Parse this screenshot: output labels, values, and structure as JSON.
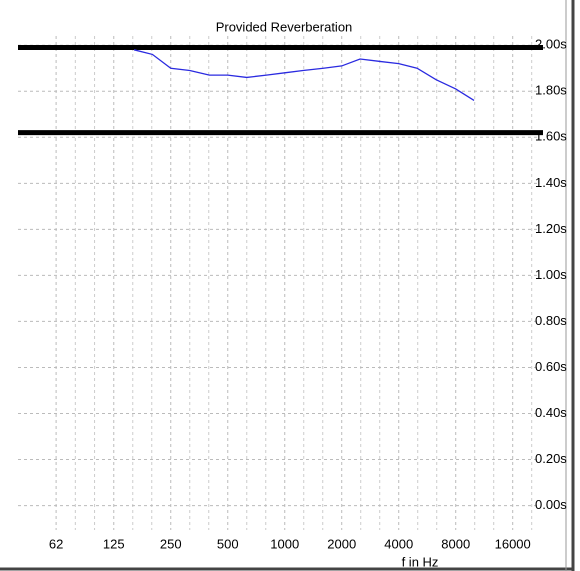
{
  "chart_data": {
    "type": "line",
    "title": "Provided Reverberation",
    "x_label": "f in Hz",
    "x": [
      160,
      200,
      250,
      315,
      400,
      500,
      630,
      800,
      1000,
      1250,
      1600,
      2000,
      2500,
      3150,
      4000,
      5000,
      6300,
      8000,
      10000
    ],
    "series": [
      {
        "color": "#2a2ae0",
        "values": [
          1.98,
          1.96,
          1.9,
          1.89,
          1.87,
          1.87,
          1.86,
          1.87,
          1.88,
          1.89,
          1.9,
          1.91,
          1.94,
          1.93,
          1.92,
          1.9,
          1.85,
          1.81,
          1.76
        ]
      }
    ],
    "xscale": "log",
    "xlim": [
      39,
      22300
    ],
    "xticks": [
      62,
      125,
      250,
      500,
      1000,
      2000,
      4000,
      8000,
      16000
    ],
    "ylim": [
      -0.08,
      2.04
    ],
    "yticks": [
      {
        "value": 0,
        "label": "0.00s"
      },
      {
        "value": 0.2,
        "label": "0.20s"
      },
      {
        "value": 0.4,
        "label": "0.40s"
      },
      {
        "value": 0.6,
        "label": "0.60s"
      },
      {
        "value": 0.8,
        "label": "0.80s"
      },
      {
        "value": 1.0,
        "label": "1.00s"
      },
      {
        "value": 1.2,
        "label": "1.20s"
      },
      {
        "value": 1.4,
        "label": "1.40s"
      },
      {
        "value": 1.6,
        "label": "1.60s"
      },
      {
        "value": 1.8,
        "label": "1.80s"
      },
      {
        "value": 2.0,
        "label": "2.00s"
      }
    ],
    "reference_lines": [
      1.99,
      1.62
    ],
    "reference_color": "#000000",
    "grid": true
  }
}
